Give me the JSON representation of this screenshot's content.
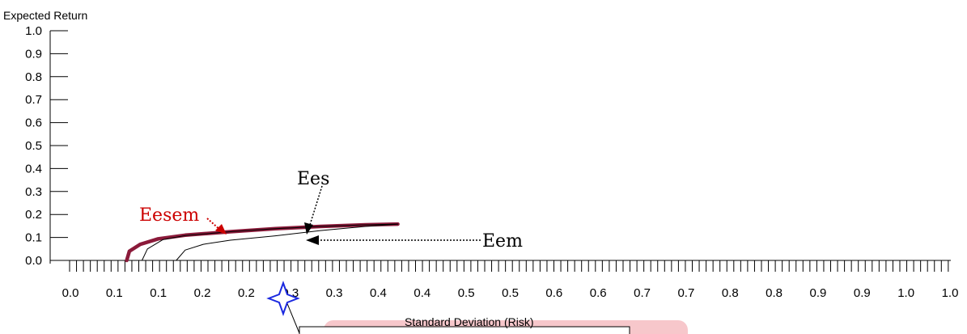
{
  "chart_data": {
    "type": "line",
    "title": "",
    "xlabel": "Standard Deviation (Risk)",
    "ylabel": "Expected Return",
    "xlim": [
      0.0,
      1.0
    ],
    "ylim": [
      0.0,
      1.0
    ],
    "y_ticks": [
      "0.0",
      "0.1",
      "0.2",
      "0.3",
      "0.4",
      "0.5",
      "0.6",
      "0.7",
      "0.8",
      "0.9",
      "1.0"
    ],
    "x_ticks": [
      "0.0",
      "0.1",
      "0.1",
      "0.2",
      "0.2",
      "0.3",
      "0.3",
      "0.4",
      "0.4",
      "0.5",
      "0.5",
      "0.6",
      "0.6",
      "0.7",
      "0.7",
      "0.8",
      "0.8",
      "0.9",
      "0.9",
      "1.0",
      "1.0"
    ],
    "series": [
      {
        "name": "Eesem",
        "color": "#8b1a3a",
        "points": [
          [
            0.085,
            0.0
          ],
          [
            0.088,
            0.04
          ],
          [
            0.1,
            0.07
          ],
          [
            0.12,
            0.094
          ],
          [
            0.15,
            0.11
          ],
          [
            0.2,
            0.125
          ],
          [
            0.25,
            0.138
          ],
          [
            0.3,
            0.148
          ],
          [
            0.35,
            0.155
          ],
          [
            0.386,
            0.158
          ]
        ]
      },
      {
        "name": "Ees",
        "color": "#000000",
        "points": [
          [
            0.102,
            0.0
          ],
          [
            0.108,
            0.05
          ],
          [
            0.125,
            0.09
          ],
          [
            0.15,
            0.108
          ],
          [
            0.2,
            0.125
          ],
          [
            0.25,
            0.138
          ],
          [
            0.3,
            0.148
          ],
          [
            0.35,
            0.155
          ],
          [
            0.386,
            0.158
          ]
        ]
      },
      {
        "name": "Eem",
        "color": "#000000",
        "points": [
          [
            0.14,
            0.0
          ],
          [
            0.15,
            0.045
          ],
          [
            0.17,
            0.07
          ],
          [
            0.2,
            0.088
          ],
          [
            0.25,
            0.107
          ],
          [
            0.3,
            0.13
          ],
          [
            0.35,
            0.148
          ],
          [
            0.386,
            0.158
          ]
        ]
      }
    ],
    "annotations": [
      {
        "text": "Eesem",
        "color": "#cc0000"
      },
      {
        "text": "Ees",
        "color": "#000000"
      },
      {
        "text": "Eem",
        "color": "#000000"
      }
    ],
    "grid": false,
    "legend": "none"
  }
}
